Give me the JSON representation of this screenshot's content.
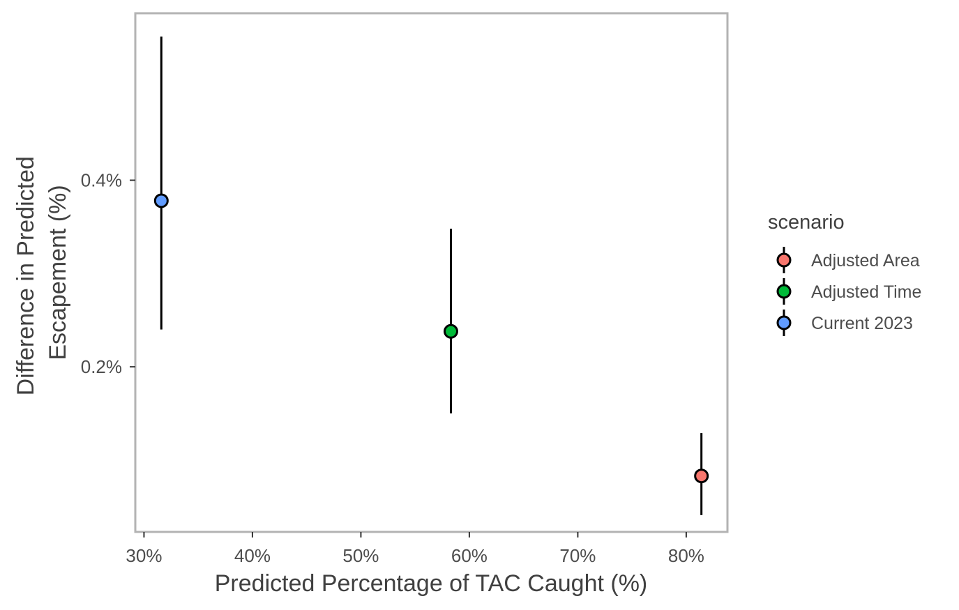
{
  "chart_data": {
    "type": "scatter",
    "xlabel": "Predicted Percentage of TAC Caught (%)",
    "ylabel": [
      "Difference in Predicted",
      "Escapement (%)"
    ],
    "xlim": [
      29.2,
      83.8
    ],
    "ylim": [
      0.023,
      0.579
    ],
    "x_ticks": [
      30,
      40,
      50,
      60,
      70,
      80
    ],
    "x_tick_labels": [
      "30%",
      "40%",
      "50%",
      "60%",
      "70%",
      "80%"
    ],
    "y_ticks": [
      0.2,
      0.4
    ],
    "y_tick_labels": [
      "0.2%",
      "0.4%"
    ],
    "grid": false,
    "legend_title": "scenario",
    "legend_position": "right",
    "series": [
      {
        "name": "Adjusted Area",
        "color": "#f8766d",
        "x": 81.4,
        "y": 0.083,
        "ymin": 0.041,
        "ymax": 0.129
      },
      {
        "name": "Adjusted Time",
        "color": "#00ba38",
        "x": 58.3,
        "y": 0.238,
        "ymin": 0.15,
        "ymax": 0.348
      },
      {
        "name": "Current 2023",
        "color": "#619cff",
        "x": 31.6,
        "y": 0.378,
        "ymin": 0.24,
        "ymax": 0.554
      }
    ]
  }
}
